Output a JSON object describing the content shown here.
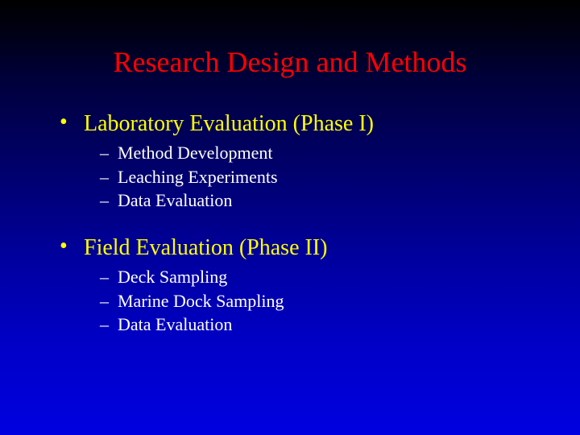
{
  "colors": {
    "title": "#ff0000",
    "top_text": "#ffff00",
    "sub_text": "#ffffff",
    "bullet_dot": "#ffff00",
    "sub_dash": "#ffffff",
    "background_gradient_top": "#000000",
    "background_gradient_bottom": "#0000e0"
  },
  "typography": {
    "font_family": "Times New Roman",
    "title_fontsize_pt": 36,
    "top_fontsize_pt": 28,
    "sub_fontsize_pt": 22
  },
  "title": "Research Design and Methods",
  "sections": [
    {
      "heading": "Laboratory Evaluation (Phase I)",
      "items": [
        "Method Development",
        "Leaching Experiments",
        "Data Evaluation"
      ]
    },
    {
      "heading": "Field Evaluation (Phase II)",
      "items": [
        "Deck Sampling",
        "Marine Dock Sampling",
        "Data Evaluation"
      ]
    }
  ],
  "bullet_glyph": "•",
  "dash_glyph": "–"
}
